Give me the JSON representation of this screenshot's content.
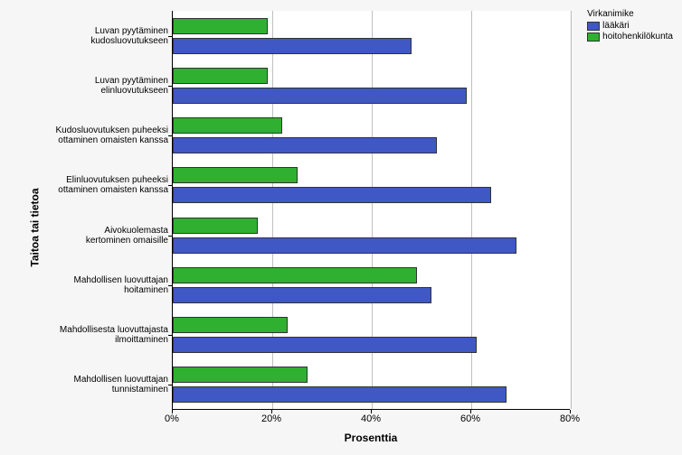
{
  "chart": {
    "type": "bar-horizontal-grouped",
    "background_color": "#f6f6f6",
    "plot_background": "#ffffff",
    "x_axis_title": "Prosenttia",
    "y_axis_title": "Taitoa tai tietoa",
    "xlim": [
      0,
      80
    ],
    "xtick_step": 20,
    "xticks": [
      "0%",
      "20%",
      "40%",
      "60%",
      "80%"
    ],
    "grid_color": "#bfbfbf",
    "legend": {
      "title": "Virkanimike",
      "position": "top-right",
      "items": [
        {
          "label": "lääkäri",
          "color": "#3f58c4"
        },
        {
          "label": "hoitohenkilökunta",
          "color": "#30b030"
        }
      ]
    },
    "categories": [
      {
        "label": "Luvan pyytäminen\nkudosluovutukseen",
        "laakari": 48,
        "hoito": 19
      },
      {
        "label": "Luvan pyytäminen\nelinluovutukseen",
        "laakari": 59,
        "hoito": 19
      },
      {
        "label": "Kudosluovutuksen puheeksi\nottaminen omaisten kanssa",
        "laakari": 53,
        "hoito": 22
      },
      {
        "label": "Elinluovutuksen puheeksi\nottaminen omaisten kanssa",
        "laakari": 64,
        "hoito": 25
      },
      {
        "label": "Aivokuolemasta\nkertominen omaisille",
        "laakari": 69,
        "hoito": 17
      },
      {
        "label": "Mahdollisen luovuttajan\nhoitaminen",
        "laakari": 52,
        "hoito": 49
      },
      {
        "label": "Mahdollisesta luovuttajasta\nilmoittaminen",
        "laakari": 61,
        "hoito": 23
      },
      {
        "label": "Mahdollisen luovuttajan\ntunnistaminen",
        "laakari": 67,
        "hoito": 27
      }
    ],
    "series_colors": {
      "laakari": "#3f58c4",
      "hoito": "#30b030"
    },
    "axis_font_size": 11,
    "label_font_size": 10,
    "title_font_size": 12
  }
}
